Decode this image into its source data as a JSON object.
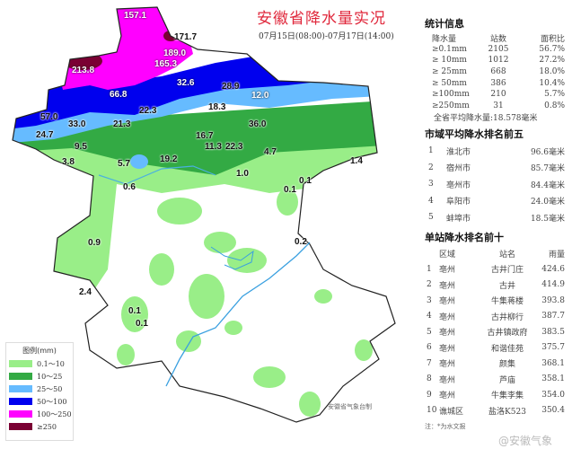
{
  "header": {
    "title": "安徽省降水量实况",
    "period": "07月15日(08:00)-07月17日(14:00)"
  },
  "stats": {
    "title": "统计信息",
    "columns": [
      "降水量",
      "站数",
      "面积比"
    ],
    "rows": [
      [
        "≥0.1mm",
        "2105",
        "56.7%"
      ],
      [
        "≥ 10mm",
        "1012",
        "27.2%"
      ],
      [
        "≥ 25mm",
        "668",
        "18.0%"
      ],
      [
        "≥ 50mm",
        "386",
        "10.4%"
      ],
      [
        "≥100mm",
        "210",
        "5.7%"
      ],
      [
        "≥250mm",
        "31",
        "0.8%"
      ]
    ],
    "average": "全省平均降水量:18.578毫米"
  },
  "city_rank": {
    "title": "市域平均降水排名前五",
    "rows": [
      [
        "1",
        "淮北市",
        "96.6毫米"
      ],
      [
        "2",
        "宿州市",
        "85.7毫米"
      ],
      [
        "3",
        "亳州市",
        "84.4毫米"
      ],
      [
        "4",
        "阜阳市",
        "24.0毫米"
      ],
      [
        "5",
        "蚌埠市",
        "18.5毫米"
      ]
    ]
  },
  "station_rank": {
    "title": "单站降水排名前十",
    "columns": [
      "区域",
      "站名",
      "雨量"
    ],
    "rows": [
      [
        "1",
        "亳州",
        "古井门庄",
        "424.6"
      ],
      [
        "2",
        "亳州",
        "古井",
        "414.9"
      ],
      [
        "3",
        "亳州",
        "牛集蒋楼",
        "393.8"
      ],
      [
        "4",
        "亳州",
        "古井柳行",
        "387.7"
      ],
      [
        "5",
        "亳州",
        "古井镇政府",
        "383.5"
      ],
      [
        "6",
        "亳州",
        "和谐佳苑",
        "375.7"
      ],
      [
        "7",
        "亳州",
        "颜集",
        "368.1"
      ],
      [
        "8",
        "亳州",
        "芦庙",
        "358.1"
      ],
      [
        "9",
        "亳州",
        "牛集李集",
        "354.0"
      ],
      [
        "10",
        "谯城区",
        "盐洛K523",
        "350.4"
      ]
    ],
    "note": "注：*为水文报"
  },
  "legend": {
    "title": "图例(mm)",
    "items": [
      {
        "label": "0.1～10",
        "color": "#99ee88"
      },
      {
        "label": "10～25",
        "color": "#33aa44"
      },
      {
        "label": "25～50",
        "color": "#66bbff"
      },
      {
        "label": "50～100",
        "color": "#0000ee"
      },
      {
        "label": "100～250",
        "color": "#ff00ff"
      },
      {
        "label": "≥250",
        "color": "#7a0033"
      }
    ]
  },
  "map": {
    "values": [
      "157.1",
      "171.7",
      "189.0",
      "165.3",
      "213.8",
      "32.6",
      "28.9",
      "66.8",
      "12.0",
      "18.3",
      "22.3",
      "57.0",
      "33.0",
      "21.3",
      "36.0",
      "24.7",
      "16.7",
      "9.5",
      "11.3",
      "22.3",
      "4.7",
      "3.8",
      "5.7",
      "19.2",
      "1.0",
      "1.4",
      "0.6",
      "0.1",
      "0.1",
      "0.9",
      "0.2",
      "2.4",
      "0.1",
      "0.1"
    ],
    "credit": "安徽省气象台制"
  },
  "watermark": "@安徽气象"
}
